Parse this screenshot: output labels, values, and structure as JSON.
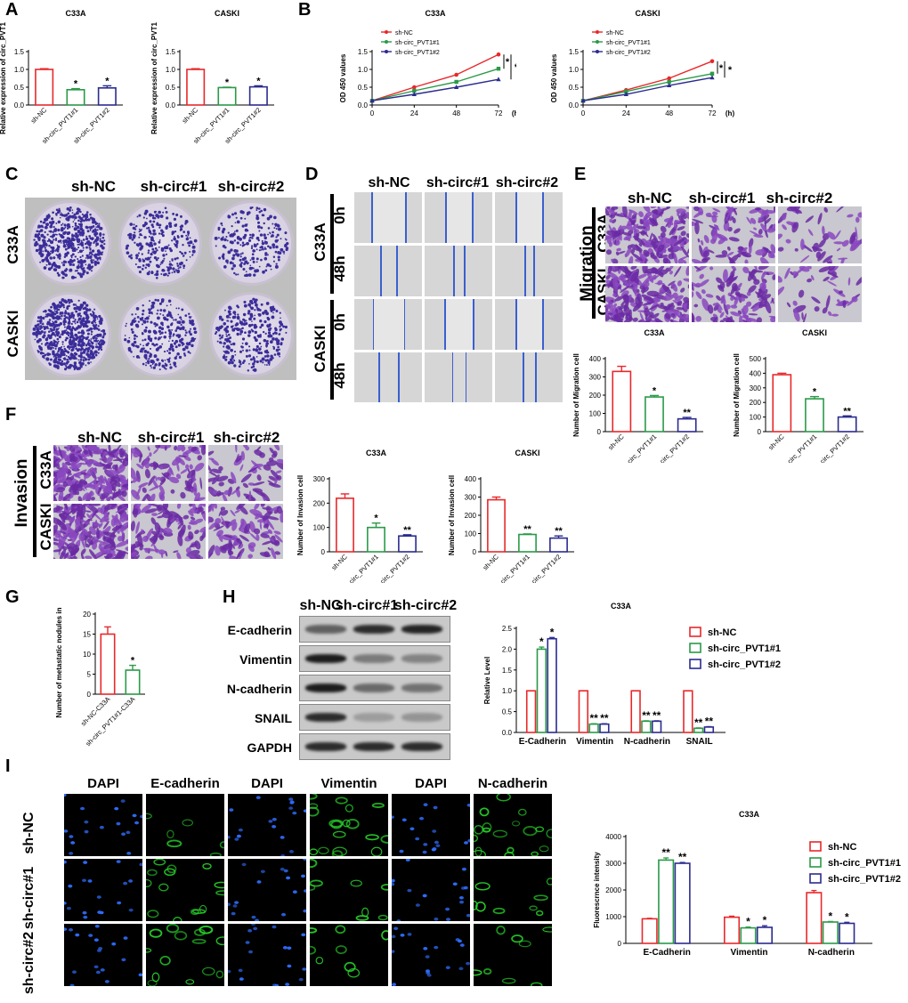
{
  "panel_letters": [
    "A",
    "B",
    "C",
    "D",
    "E",
    "F",
    "G",
    "H",
    "I"
  ],
  "chart_data": [
    {
      "id": "A1",
      "type": "bar",
      "title": "C33A",
      "ylabel": "Relative expression of circ_PVT1",
      "categories": [
        "sh-NC",
        "sh-circ_PVT1#1",
        "sh-circ_PVT1#2"
      ],
      "values": [
        1.0,
        0.43,
        0.48
      ],
      "errors": [
        0.02,
        0.03,
        0.06
      ],
      "sig": [
        "",
        "*",
        "*"
      ],
      "ylim": [
        0,
        1.5
      ],
      "yticks": [
        0,
        0.5,
        1.0,
        1.5
      ],
      "colors": [
        "#e8282b",
        "#2a9a48",
        "#2b2b8f"
      ]
    },
    {
      "id": "A2",
      "type": "bar",
      "title": "CASKI",
      "ylabel": "Relative expression of circ_PVT1",
      "categories": [
        "sh-NC",
        "sh-circ_PVT1#1",
        "sh-circ_PVT1#2"
      ],
      "values": [
        1.0,
        0.49,
        0.51
      ],
      "errors": [
        0.02,
        0.01,
        0.03
      ],
      "sig": [
        "",
        "*",
        "*"
      ],
      "ylim": [
        0,
        1.5
      ],
      "yticks": [
        0,
        0.5,
        1.0,
        1.5
      ],
      "colors": [
        "#e8282b",
        "#2a9a48",
        "#2b2b8f"
      ]
    },
    {
      "id": "B1",
      "type": "line",
      "title": "C33A",
      "ylabel": "OD 450 values",
      "xlabel": "(h)",
      "x": [
        0,
        24,
        48,
        72
      ],
      "ylim": [
        0,
        1.5
      ],
      "yticks": [
        0.0,
        0.5,
        1.0,
        1.5
      ],
      "series": [
        {
          "name": "sh-NC",
          "values": [
            0.12,
            0.5,
            0.85,
            1.42
          ],
          "color": "#e8282b",
          "marker": "circle"
        },
        {
          "name": "sh-circ_PVT1#1",
          "values": [
            0.12,
            0.4,
            0.65,
            1.02
          ],
          "color": "#2a9a48",
          "marker": "square"
        },
        {
          "name": "sh-circ_PVT1#2",
          "values": [
            0.12,
            0.3,
            0.5,
            0.72
          ],
          "color": "#2b2b8f",
          "marker": "triangle"
        }
      ],
      "sig": [
        "*",
        "*"
      ]
    },
    {
      "id": "B2",
      "type": "line",
      "title": "CASKI",
      "ylabel": "OD 450 values",
      "xlabel": "(h)",
      "x": [
        0,
        24,
        48,
        72
      ],
      "ylim": [
        0,
        1.5
      ],
      "yticks": [
        0.0,
        0.5,
        1.0,
        1.5
      ],
      "series": [
        {
          "name": "sh-NC",
          "values": [
            0.12,
            0.42,
            0.75,
            1.23
          ],
          "color": "#e8282b",
          "marker": "circle"
        },
        {
          "name": "sh-circ_PVT1#1",
          "values": [
            0.12,
            0.38,
            0.65,
            0.88
          ],
          "color": "#2a9a48",
          "marker": "square"
        },
        {
          "name": "sh-circ_PVT1#2",
          "values": [
            0.12,
            0.3,
            0.55,
            0.77
          ],
          "color": "#2b2b8f",
          "marker": "triangle"
        }
      ],
      "sig": [
        "*",
        "*"
      ]
    },
    {
      "id": "E1",
      "type": "bar",
      "title": "C33A",
      "ylabel": "Number of Migration cell",
      "categories": [
        "sh-NC",
        "sh-circ_PVT1#1",
        "sh-circ_PVT1#2"
      ],
      "values": [
        330,
        190,
        70
      ],
      "errors": [
        28,
        8,
        8
      ],
      "sig": [
        "",
        "*",
        "**"
      ],
      "ylim": [
        0,
        400
      ],
      "yticks": [
        0,
        100,
        200,
        300,
        400
      ],
      "colors": [
        "#e8282b",
        "#2a9a48",
        "#2b2b8f"
      ]
    },
    {
      "id": "E2",
      "type": "bar",
      "title": "CASKI",
      "ylabel": "Number of Migration cell",
      "categories": [
        "sh-NC",
        "sh-circ_PVT1#1",
        "sh-circ_PVT1#2"
      ],
      "values": [
        390,
        225,
        100
      ],
      "errors": [
        10,
        15,
        8
      ],
      "sig": [
        "",
        "*",
        "**"
      ],
      "ylim": [
        0,
        500
      ],
      "yticks": [
        0,
        100,
        200,
        300,
        400,
        500
      ],
      "colors": [
        "#e8282b",
        "#2a9a48",
        "#2b2b8f"
      ]
    },
    {
      "id": "F1",
      "type": "bar",
      "title": "C33A",
      "ylabel": "Number of Invasion cell",
      "categories": [
        "sh-NC",
        "sh-circ_PVT1#1",
        "sh-circ_PVT1#2"
      ],
      "values": [
        220,
        100,
        65
      ],
      "errors": [
        18,
        18,
        5
      ],
      "sig": [
        "",
        "*",
        "**"
      ],
      "ylim": [
        0,
        300
      ],
      "yticks": [
        0,
        100,
        200,
        300
      ],
      "colors": [
        "#e8282b",
        "#2a9a48",
        "#2b2b8f"
      ]
    },
    {
      "id": "F2",
      "type": "bar",
      "title": "CASKI",
      "ylabel": "Number of Invasion cell",
      "categories": [
        "sh-NC",
        "sh-circ_PVT1#1",
        "sh-circ_PVT1#2"
      ],
      "values": [
        285,
        95,
        75
      ],
      "errors": [
        15,
        3,
        12
      ],
      "sig": [
        "",
        "**",
        "**"
      ],
      "ylim": [
        0,
        400
      ],
      "yticks": [
        0,
        100,
        200,
        300,
        400
      ],
      "colors": [
        "#e8282b",
        "#2a9a48",
        "#2b2b8f"
      ]
    },
    {
      "id": "G",
      "type": "bar",
      "title": "",
      "ylabel": "Number of metastatic nodules in lung",
      "categories": [
        "sh-NC-C33A",
        "sh-circ_PVT1#1-C33A"
      ],
      "values": [
        15,
        6
      ],
      "errors": [
        1.8,
        1.2
      ],
      "sig": [
        "",
        "*"
      ],
      "ylim": [
        0,
        20
      ],
      "yticks": [
        0,
        5,
        10,
        15,
        20
      ],
      "colors": [
        "#e8282b",
        "#2a9a48"
      ]
    },
    {
      "id": "H",
      "type": "bar",
      "title": "C33A",
      "ylabel": "Relative Level",
      "categories": [
        "E-Cadherin",
        "Vimentin",
        "N-cadherin",
        "SNAIL"
      ],
      "series": [
        {
          "name": "sh-NC",
          "values": [
            1.0,
            1.0,
            1.0,
            1.0
          ],
          "color": "#e8282b"
        },
        {
          "name": "sh-circ_PVT1#1",
          "values": [
            2.0,
            0.2,
            0.27,
            0.1
          ],
          "color": "#2a9a48"
        },
        {
          "name": "sh-circ_PVT1#2",
          "values": [
            2.25,
            0.2,
            0.27,
            0.13
          ],
          "color": "#2b2b8f"
        }
      ],
      "errors": [
        [
          0,
          0.05,
          0.03
        ],
        [
          0,
          0.01,
          0.01
        ],
        [
          0,
          0.01,
          0.01
        ],
        [
          0,
          0.01,
          0.01
        ]
      ],
      "sig": [
        [
          "",
          "*",
          "*"
        ],
        [
          "",
          "**",
          "**"
        ],
        [
          "",
          "**",
          "**"
        ],
        [
          "",
          "**",
          "**"
        ]
      ],
      "ylim": [
        0,
        2.5
      ],
      "yticks": [
        0.0,
        0.5,
        1.0,
        1.5,
        2.0,
        2.5
      ]
    },
    {
      "id": "I",
      "type": "bar",
      "title": "C33A",
      "ylabel": "Fluorescrnce intensity",
      "categories": [
        "E-Cadherin",
        "Vimentin",
        "N-cadherin"
      ],
      "series": [
        {
          "name": "sh-NC",
          "values": [
            920,
            980,
            1900
          ],
          "color": "#e8282b"
        },
        {
          "name": "sh-circ_PVT1#1",
          "values": [
            3120,
            580,
            800
          ],
          "color": "#2a9a48"
        },
        {
          "name": "sh-circ_PVT1#2",
          "values": [
            3000,
            600,
            750
          ],
          "color": "#2b2b8f"
        }
      ],
      "errors": [
        [
          20,
          80,
          30
        ],
        [
          40,
          30,
          60
        ],
        [
          80,
          20,
          40
        ]
      ],
      "sig": [
        [
          "",
          "**",
          "**"
        ],
        [
          "",
          "*",
          "*"
        ],
        [
          "",
          "*",
          "*"
        ]
      ],
      "ylim": [
        0,
        4000
      ],
      "yticks": [
        0,
        1000,
        2000,
        3000,
        4000
      ]
    }
  ],
  "panelC": {
    "cols": [
      "sh-NC",
      "sh-circ#1",
      "sh-circ#2"
    ],
    "rows": [
      "C33A",
      "CASKI"
    ]
  },
  "panelD": {
    "cols": [
      "sh-NC",
      "sh-circ#1",
      "sh-circ#2"
    ],
    "rows": [
      "C33A",
      "CASKI"
    ],
    "times": [
      "0h",
      "48h",
      "0h",
      "48h"
    ]
  },
  "panelE": {
    "cols": [
      "sh-NC",
      "sh-circ#1",
      "sh-circ#2"
    ],
    "rows": [
      "C33A",
      "CASKI"
    ],
    "side": "Migration"
  },
  "panelF": {
    "cols": [
      "sh-NC",
      "sh-circ#1",
      "sh-circ#2"
    ],
    "rows": [
      "C33A",
      "CASKI"
    ],
    "side": "Invasion"
  },
  "panelH_blot": {
    "cols": [
      "sh-NC",
      "sh-circ#1",
      "sh-circ#2"
    ],
    "proteins": [
      "E-cadherin",
      "Vimentin",
      "N-cadherin",
      "SNAIL",
      "GAPDH"
    ]
  },
  "panelI_images": {
    "cols": [
      "DAPI",
      "E-cadherin",
      "DAPI",
      "Vimentin",
      "DAPI",
      "N-cadherin"
    ],
    "rows": [
      "sh-NC",
      "sh-circ#1",
      "sh-circ#2"
    ]
  }
}
